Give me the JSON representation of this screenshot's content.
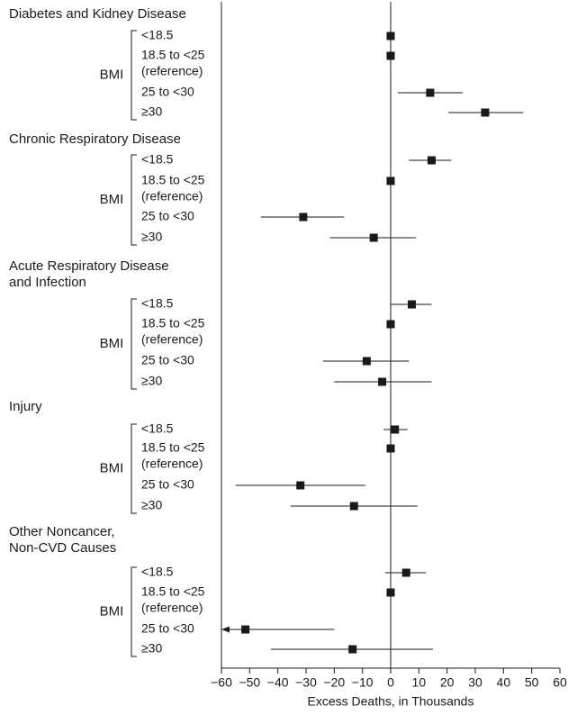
{
  "chart_data": {
    "type": "forest",
    "xlabel": "Excess Deaths, in Thousands",
    "xlim": [
      -60,
      60
    ],
    "xticks": [
      -60,
      -50,
      -40,
      -30,
      -20,
      -10,
      0,
      10,
      20,
      30,
      40,
      50,
      60
    ],
    "bmi_label": "BMI",
    "groups": [
      {
        "title_lines": [
          "Diabetes and Kidney Disease"
        ],
        "categories": [
          {
            "label_lines": [
              "<18.5"
            ],
            "estimate": 0,
            "ci": [
              0,
              0
            ]
          },
          {
            "label_lines": [
              "18.5 to <25",
              "(reference)"
            ],
            "estimate": 0,
            "ci": [
              0,
              0
            ]
          },
          {
            "label_lines": [
              "25 to <30"
            ],
            "estimate": 14,
            "ci": [
              2.5,
              25.5
            ]
          },
          {
            "label_lines": [
              "≥30"
            ],
            "estimate": 33.5,
            "ci": [
              20.5,
              47
            ]
          }
        ]
      },
      {
        "title_lines": [
          "Chronic Respiratory Disease"
        ],
        "categories": [
          {
            "label_lines": [
              "<18.5"
            ],
            "estimate": 14.5,
            "ci": [
              6.5,
              21.5
            ]
          },
          {
            "label_lines": [
              "18.5 to <25",
              "(reference)"
            ],
            "estimate": 0,
            "ci": [
              0,
              0
            ]
          },
          {
            "label_lines": [
              "25 to <30"
            ],
            "estimate": -31,
            "ci": [
              -46,
              -16.5
            ]
          },
          {
            "label_lines": [
              "≥30"
            ],
            "estimate": -6,
            "ci": [
              -21.5,
              9
            ]
          }
        ]
      },
      {
        "title_lines": [
          "Acute Respiratory Disease",
          "and Infection"
        ],
        "categories": [
          {
            "label_lines": [
              "<18.5"
            ],
            "estimate": 7.5,
            "ci": [
              0,
              14.5
            ]
          },
          {
            "label_lines": [
              "18.5 to <25",
              "(reference)"
            ],
            "estimate": 0,
            "ci": [
              0,
              0
            ]
          },
          {
            "label_lines": [
              "25 to <30"
            ],
            "estimate": -8.5,
            "ci": [
              -24,
              6.5
            ]
          },
          {
            "label_lines": [
              "≥30"
            ],
            "estimate": -3,
            "ci": [
              -20,
              14.5
            ]
          }
        ]
      },
      {
        "title_lines": [
          "Injury"
        ],
        "categories": [
          {
            "label_lines": [
              "<18.5"
            ],
            "estimate": 1.5,
            "ci": [
              -2.5,
              6
            ]
          },
          {
            "label_lines": [
              "18.5 to <25",
              "(reference)"
            ],
            "estimate": 0,
            "ci": [
              0,
              0
            ]
          },
          {
            "label_lines": [
              "25 to <30"
            ],
            "estimate": -32,
            "ci": [
              -55,
              -9
            ]
          },
          {
            "label_lines": [
              "≥30"
            ],
            "estimate": -13,
            "ci": [
              -35.5,
              9.5
            ]
          }
        ]
      },
      {
        "title_lines": [
          "Other Noncancer,",
          "Non-CVD Causes"
        ],
        "categories": [
          {
            "label_lines": [
              "<18.5"
            ],
            "estimate": 5.5,
            "ci": [
              -2,
              12.5
            ]
          },
          {
            "label_lines": [
              "18.5 to <25",
              "(reference)"
            ],
            "estimate": 0,
            "ci": [
              0,
              0
            ]
          },
          {
            "label_lines": [
              "25 to <30"
            ],
            "estimate": -51.5,
            "ci": [
              -60,
              -20
            ],
            "ci_low_truncated": true
          },
          {
            "label_lines": [
              "≥30"
            ],
            "estimate": -13.5,
            "ci": [
              -42.5,
              15
            ]
          }
        ]
      }
    ]
  }
}
